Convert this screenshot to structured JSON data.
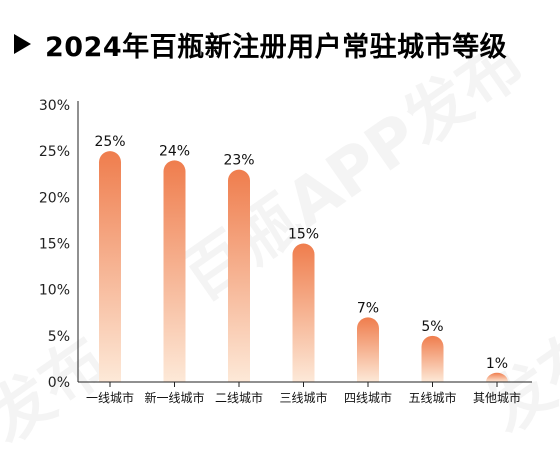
{
  "title": "2024年百瓶新注册用户常驻城市等级",
  "chart_data": {
    "type": "bar",
    "categories": [
      "一线城市",
      "新一线城市",
      "二线城市",
      "三线城市",
      "四线城市",
      "五线城市",
      "其他城市"
    ],
    "values": [
      25,
      24,
      23,
      15,
      7,
      5,
      1
    ],
    "data_labels": [
      "25%",
      "24%",
      "23%",
      "15%",
      "7%",
      "5%",
      "1%"
    ],
    "ylim": [
      0,
      30
    ],
    "yticks": [
      "0%",
      "5%",
      "10%",
      "15%",
      "20%",
      "25%",
      "30%"
    ],
    "grid": false,
    "colors": {
      "bar_top": "#ef7d4d",
      "bar_bottom": "#fde9d8",
      "axis": "#222222"
    }
  },
  "watermarks": [
    "百瓶APP发布",
    "百瓶APP发布",
    "发布",
    "发布"
  ]
}
